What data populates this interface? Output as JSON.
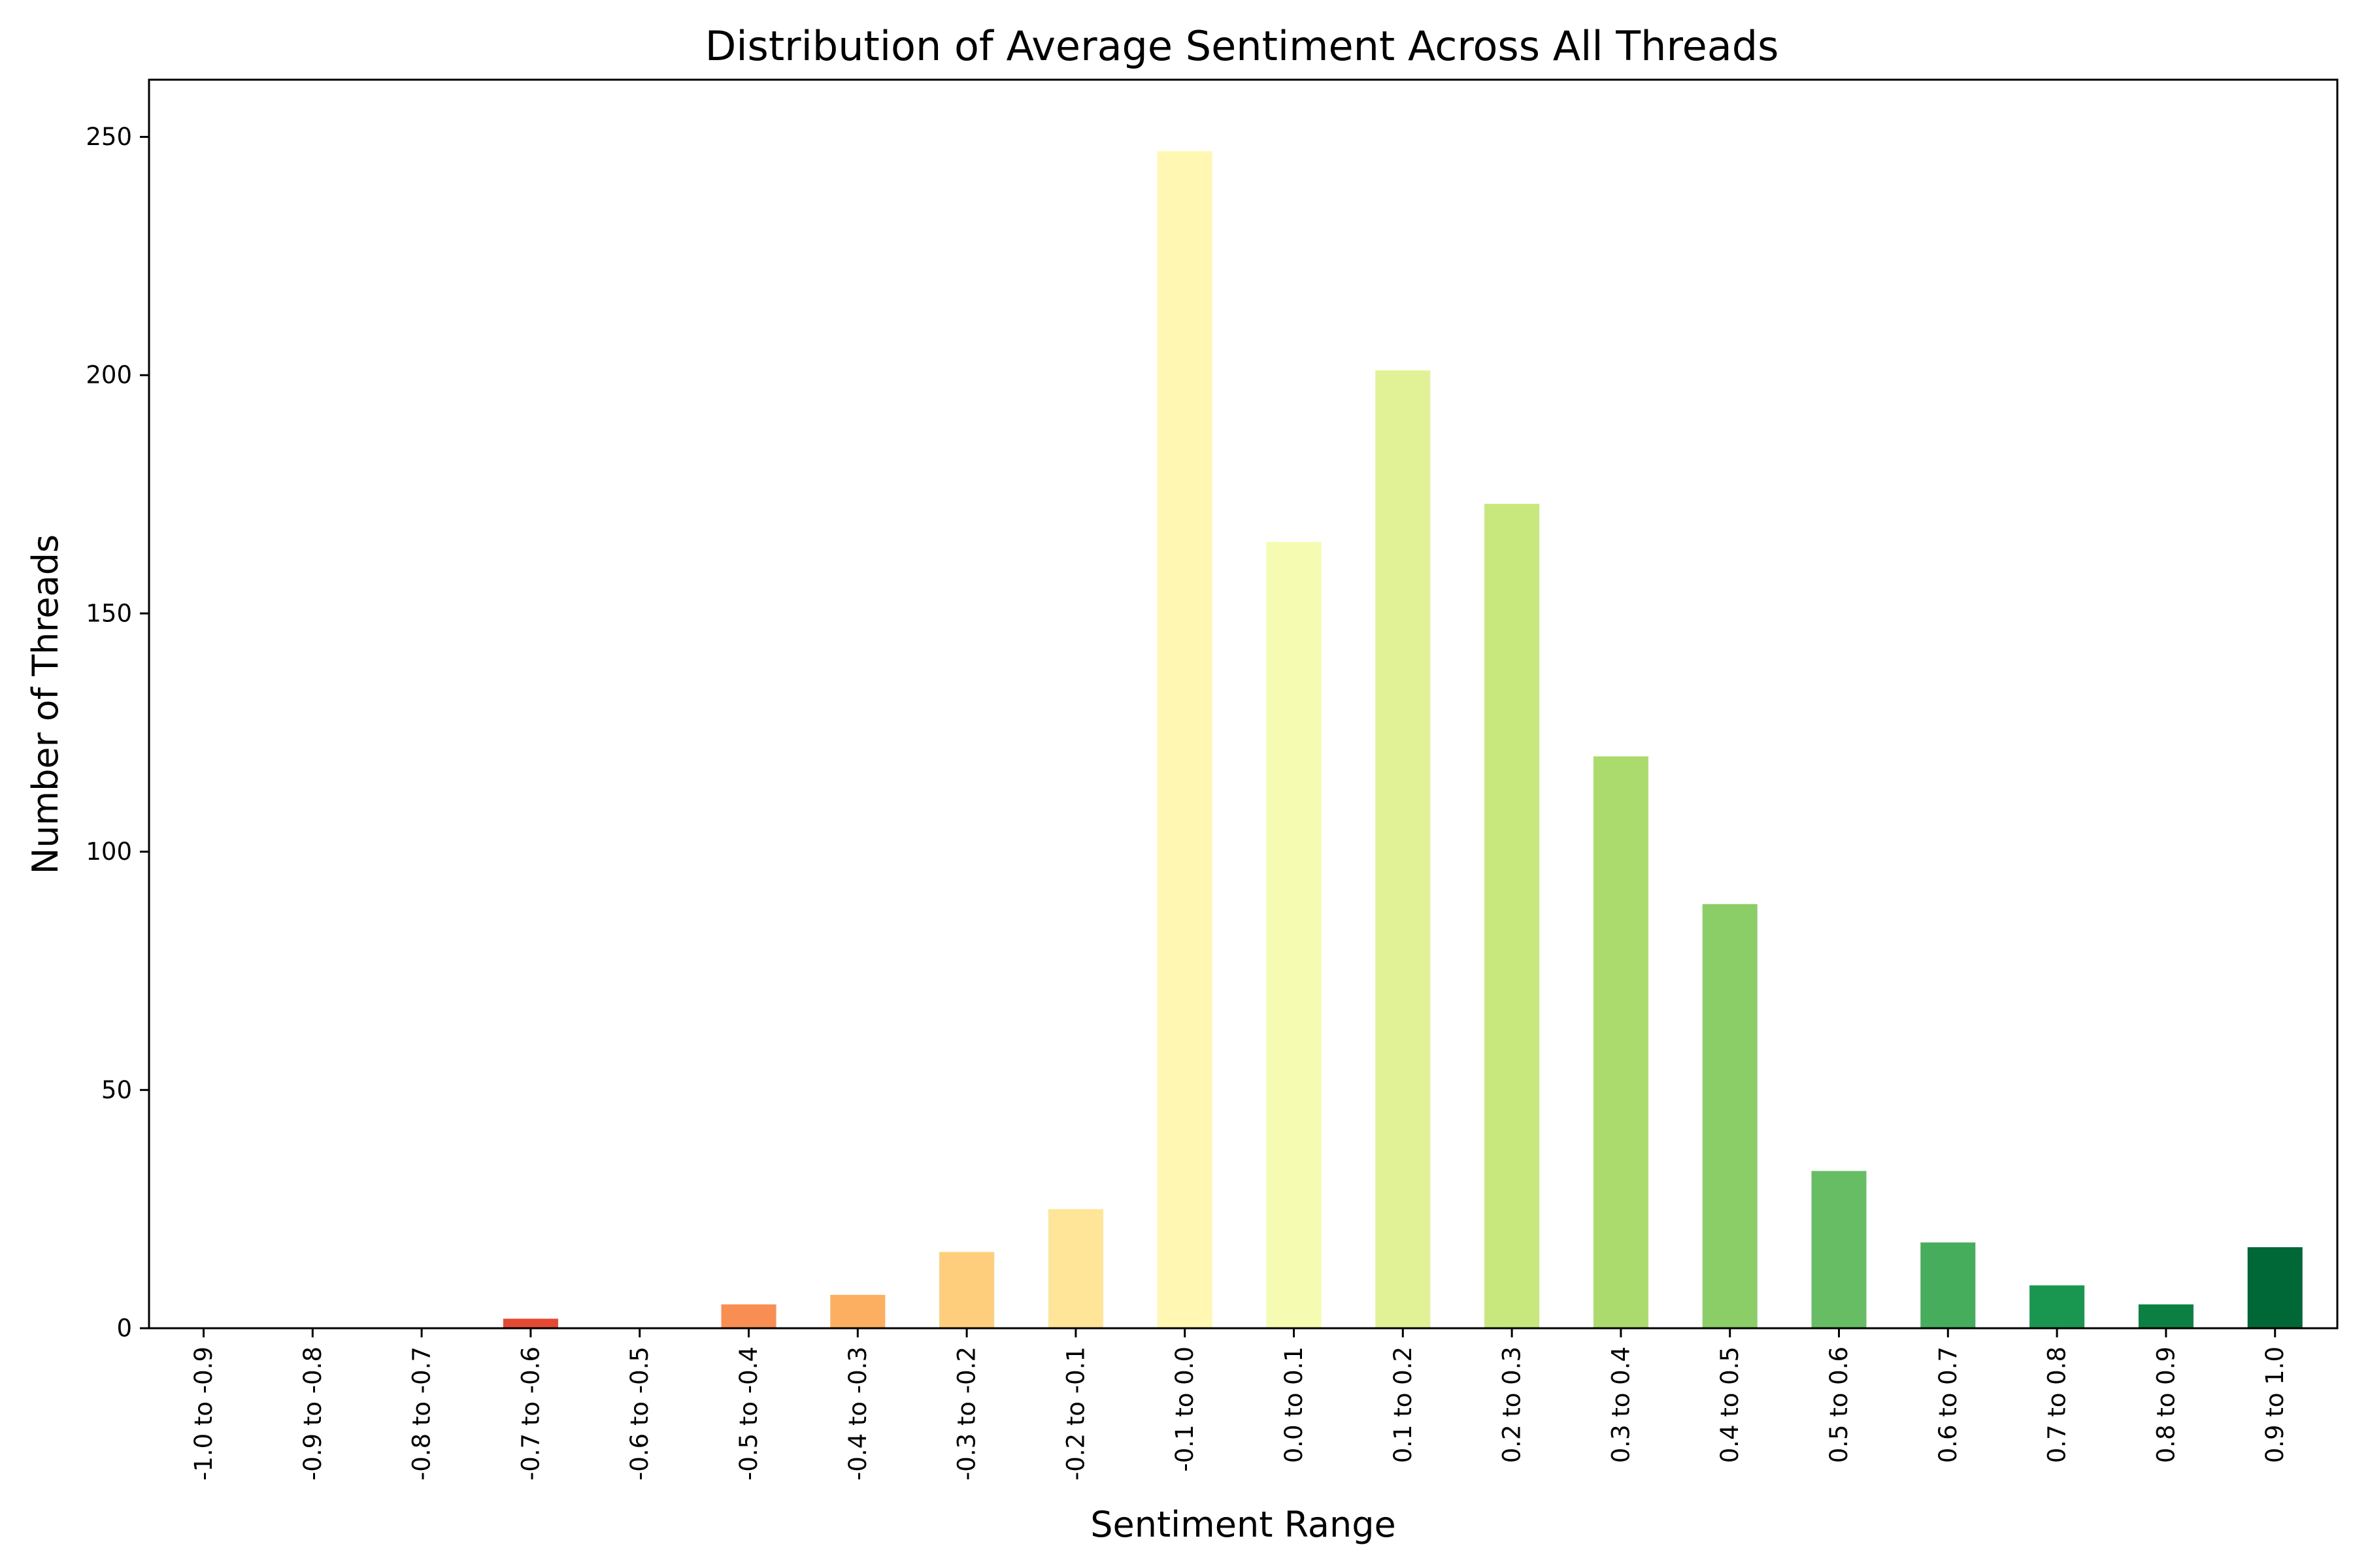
{
  "chart_data": {
    "type": "bar",
    "title": "Distribution of Average Sentiment Across All Threads",
    "xlabel": "Sentiment Range",
    "ylabel": "Number of Threads",
    "categories": [
      "-1.0 to -0.9",
      "-0.9 to -0.8",
      "-0.8 to -0.7",
      "-0.7 to -0.6",
      "-0.6 to -0.5",
      "-0.5 to -0.4",
      "-0.4 to -0.3",
      "-0.3 to -0.2",
      "-0.2 to -0.1",
      "-0.1 to 0.0",
      "0.0 to 0.1",
      "0.1 to 0.2",
      "0.2 to 0.3",
      "0.3 to 0.4",
      "0.4 to 0.5",
      "0.5 to 0.6",
      "0.6 to 0.7",
      "0.7 to 0.8",
      "0.8 to 0.9",
      "0.9 to 1.0"
    ],
    "values": [
      0,
      0,
      0,
      2,
      0,
      5,
      7,
      16,
      25,
      247,
      165,
      201,
      173,
      120,
      89,
      33,
      18,
      9,
      5,
      17
    ],
    "colors": [
      "#a50026",
      "#be1828",
      "#d62f27",
      "#e34933",
      "#f26841",
      "#f98e52",
      "#fdaf61",
      "#fece7c",
      "#fee597",
      "#fff7b2",
      "#f6fbb2",
      "#e1f296",
      "#c8e77d",
      "#abdb6d",
      "#8bce67",
      "#66bd63",
      "#45ad5b",
      "#199750",
      "#0c7f43",
      "#006837"
    ],
    "yticks": [
      0,
      50,
      100,
      150,
      200,
      250
    ],
    "ylim": [
      0,
      262
    ],
    "grid": false,
    "legend": "none"
  }
}
